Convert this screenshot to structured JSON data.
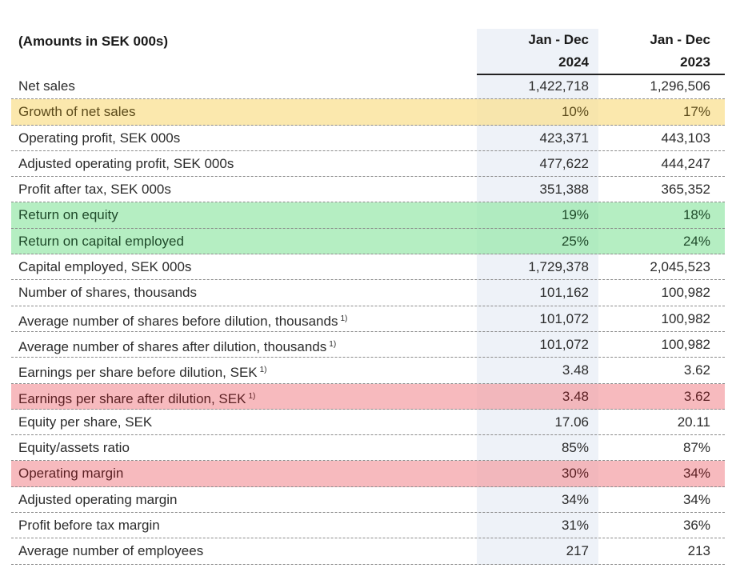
{
  "header": {
    "title": "(Amounts in SEK 000s)",
    "col1_line1": "Jan - Dec",
    "col1_line2": "2024",
    "col2_line1": "Jan - Dec",
    "col2_line2": "2023"
  },
  "highlight_colors": {
    "yellow": "#fae296",
    "green": "#98e8aa",
    "red": "#f4a0a5"
  },
  "rows": [
    {
      "label": "Net sales",
      "note": "",
      "v2024": "1,422,718",
      "v2023": "1,296,506",
      "highlight": ""
    },
    {
      "label": "Growth of net sales",
      "note": "",
      "v2024": "10%",
      "v2023": "17%",
      "highlight": "yellow"
    },
    {
      "label": "Operating profit, SEK 000s",
      "note": "",
      "v2024": "423,371",
      "v2023": "443,103",
      "highlight": ""
    },
    {
      "label": "Adjusted operating profit, SEK 000s",
      "note": "",
      "v2024": "477,622",
      "v2023": "444,247",
      "highlight": ""
    },
    {
      "label": "Profit after tax, SEK 000s",
      "note": "",
      "v2024": "351,388",
      "v2023": "365,352",
      "highlight": ""
    },
    {
      "label": "Return on equity",
      "note": "",
      "v2024": "19%",
      "v2023": "18%",
      "highlight": "green"
    },
    {
      "label": "Return on capital employed",
      "note": "",
      "v2024": "25%",
      "v2023": "24%",
      "highlight": "green"
    },
    {
      "label": "Capital employed, SEK 000s",
      "note": "",
      "v2024": "1,729,378",
      "v2023": "2,045,523",
      "highlight": ""
    },
    {
      "label": "Number of shares, thousands",
      "note": "",
      "v2024": "101,162",
      "v2023": "100,982",
      "highlight": ""
    },
    {
      "label": "Average number of shares before dilution, thousands",
      "note": "1)",
      "v2024": "101,072",
      "v2023": "100,982",
      "highlight": ""
    },
    {
      "label": "Average number of shares after dilution, thousands",
      "note": "1)",
      "v2024": "101,072",
      "v2023": "100,982",
      "highlight": ""
    },
    {
      "label": "Earnings per share before dilution, SEK",
      "note": "1)",
      "v2024": "3.48",
      "v2023": "3.62",
      "highlight": ""
    },
    {
      "label": "Earnings per share after dilution, SEK",
      "note": "1)",
      "v2024": "3.48",
      "v2023": "3.62",
      "highlight": "red"
    },
    {
      "label": "Equity per share, SEK",
      "note": "",
      "v2024": "17.06",
      "v2023": "20.11",
      "highlight": ""
    },
    {
      "label": "Equity/assets ratio",
      "note": "",
      "v2024": "85%",
      "v2023": "87%",
      "highlight": ""
    },
    {
      "label": "Operating margin",
      "note": "",
      "v2024": "30%",
      "v2023": "34%",
      "highlight": "red"
    },
    {
      "label": "Adjusted operating margin",
      "note": "",
      "v2024": "34%",
      "v2023": "34%",
      "highlight": ""
    },
    {
      "label": "Profit before tax margin",
      "note": "",
      "v2024": "31%",
      "v2023": "36%",
      "highlight": ""
    },
    {
      "label": "Average number of employees",
      "note": "",
      "v2024": "217",
      "v2023": "213",
      "highlight": ""
    }
  ]
}
